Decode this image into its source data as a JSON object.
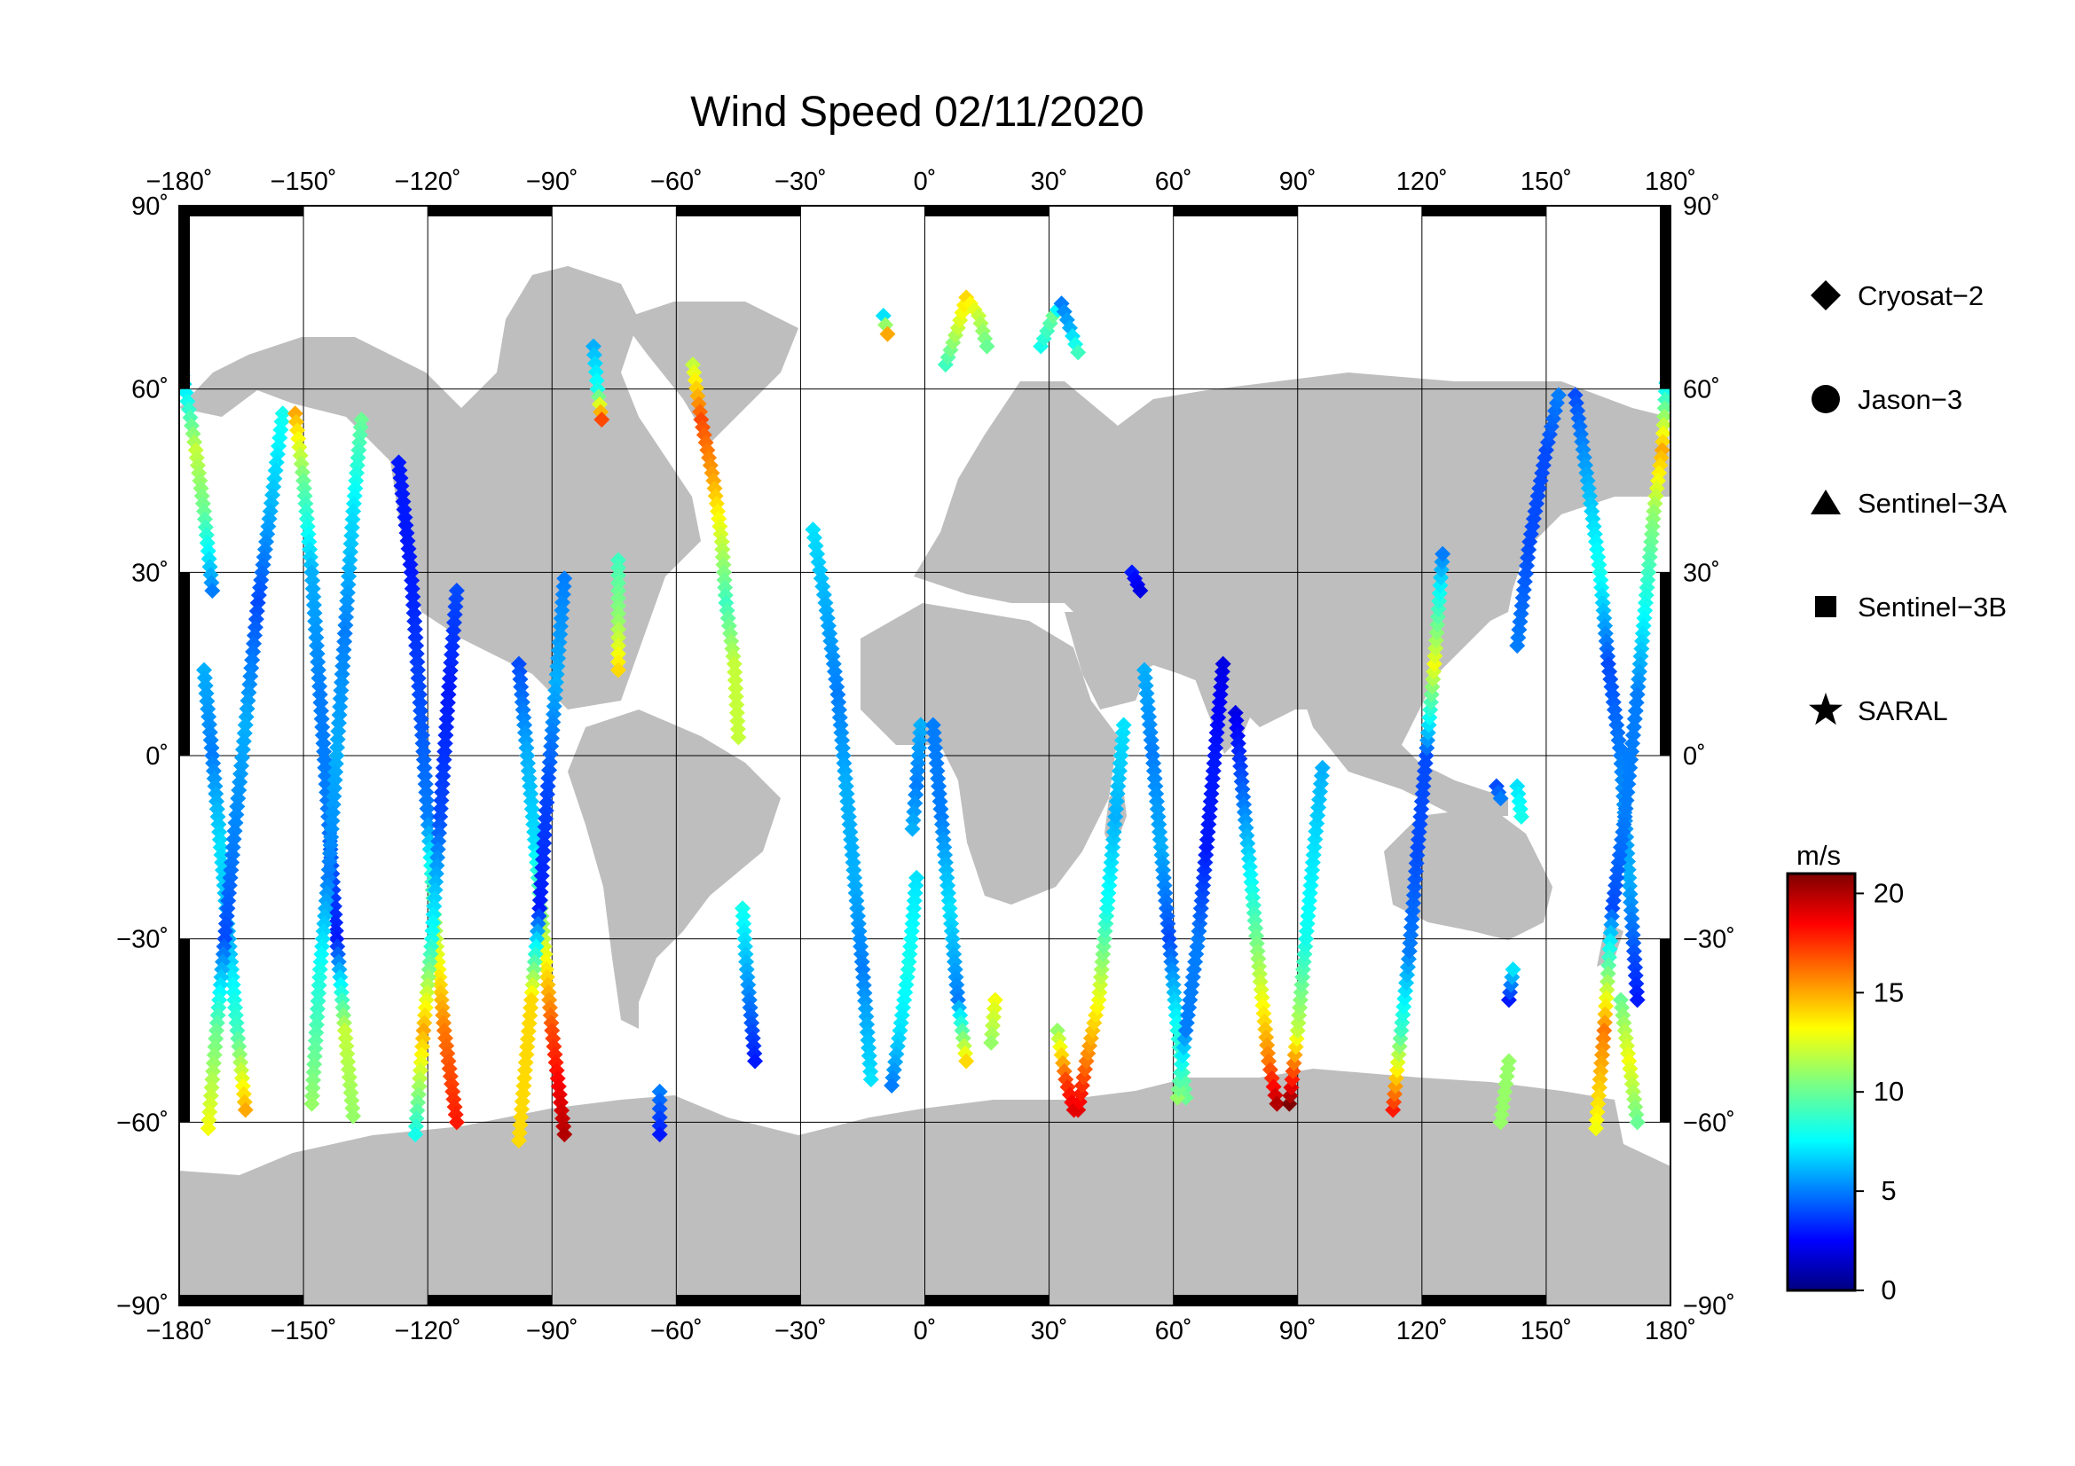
{
  "title": "Wind Speed 02/11/2020",
  "map": {
    "lon_ticks": [
      {
        "value": -180,
        "label": "−180˚"
      },
      {
        "value": -150,
        "label": "−150˚"
      },
      {
        "value": -120,
        "label": "−120˚"
      },
      {
        "value": -90,
        "label": "−90˚"
      },
      {
        "value": -60,
        "label": "−60˚"
      },
      {
        "value": -30,
        "label": "−30˚"
      },
      {
        "value": 0,
        "label": "0˚"
      },
      {
        "value": 30,
        "label": "30˚"
      },
      {
        "value": 60,
        "label": "60˚"
      },
      {
        "value": 90,
        "label": "90˚"
      },
      {
        "value": 120,
        "label": "120˚"
      },
      {
        "value": 150,
        "label": "150˚"
      },
      {
        "value": 180,
        "label": "180˚"
      }
    ],
    "lat_ticks": [
      {
        "value": 90,
        "label": "90˚"
      },
      {
        "value": 60,
        "label": "60˚"
      },
      {
        "value": 30,
        "label": "30˚"
      },
      {
        "value": 0,
        "label": "0˚"
      },
      {
        "value": -30,
        "label": "−30˚"
      },
      {
        "value": -60,
        "label": "−60˚"
      },
      {
        "value": -90,
        "label": "−90˚"
      }
    ],
    "land_color": "#bebebe",
    "ocean_color": "#ffffff"
  },
  "legend": [
    {
      "label": "Cryosat−2",
      "marker": "diamond"
    },
    {
      "label": "Jason−3",
      "marker": "circle"
    },
    {
      "label": "Sentinel−3A",
      "marker": "triangle"
    },
    {
      "label": "Sentinel−3B",
      "marker": "square"
    },
    {
      "label": "SARAL",
      "marker": "star"
    }
  ],
  "colorbar": {
    "unit": "m/s",
    "min": 0,
    "max": 21,
    "ticks": [
      {
        "value": 0,
        "label": "0"
      },
      {
        "value": 5,
        "label": "5"
      },
      {
        "value": 10,
        "label": "10"
      },
      {
        "value": 15,
        "label": "15"
      },
      {
        "value": 20,
        "label": "20"
      }
    ]
  },
  "tracks": [
    {
      "name": "track-01",
      "points": [
        [
          -180,
          65,
          5
        ],
        [
          -178,
          58,
          8
        ],
        [
          -176,
          50,
          12
        ],
        [
          -174,
          40,
          10
        ],
        [
          -172,
          27,
          5
        ]
      ]
    },
    {
      "name": "track-02",
      "points": [
        [
          -174,
          14,
          6
        ],
        [
          -172,
          0,
          5
        ],
        [
          -170,
          -15,
          7
        ],
        [
          -168,
          -30,
          6
        ],
        [
          -166,
          -45,
          9
        ],
        [
          -164,
          -58,
          15
        ]
      ]
    },
    {
      "name": "track-03",
      "points": [
        [
          -155,
          56,
          8
        ],
        [
          -158,
          40,
          6
        ],
        [
          -161,
          25,
          4
        ],
        [
          -164,
          5,
          6
        ],
        [
          -167,
          -15,
          5
        ],
        [
          -169,
          -30,
          4
        ],
        [
          -171,
          -45,
          10
        ],
        [
          -173,
          -61,
          13
        ]
      ]
    },
    {
      "name": "track-04",
      "points": [
        [
          -152,
          56,
          15
        ],
        [
          -150,
          45,
          10
        ],
        [
          -148,
          30,
          6
        ],
        [
          -146,
          10,
          5
        ],
        [
          -144,
          -10,
          5
        ],
        [
          -142,
          -30,
          3
        ],
        [
          -140,
          -45,
          12
        ],
        [
          -138,
          -59,
          11
        ]
      ]
    },
    {
      "name": "track-05",
      "points": [
        [
          -136,
          55,
          10
        ],
        [
          -138,
          40,
          7
        ],
        [
          -140,
          20,
          5
        ],
        [
          -142,
          0,
          6
        ],
        [
          -144,
          -20,
          5
        ],
        [
          -146,
          -35,
          8
        ],
        [
          -148,
          -57,
          11
        ]
      ]
    },
    {
      "name": "track-06",
      "points": [
        [
          -127,
          48,
          3
        ],
        [
          -124,
          30,
          3
        ],
        [
          -122,
          10,
          4
        ],
        [
          -120,
          -10,
          5
        ],
        [
          -118,
          -30,
          12
        ],
        [
          -116,
          -45,
          16
        ],
        [
          -113,
          -60,
          18
        ]
      ]
    },
    {
      "name": "track-07",
      "points": [
        [
          -113,
          27,
          4
        ],
        [
          -115,
          10,
          3
        ],
        [
          -117,
          -10,
          4
        ],
        [
          -119,
          -30,
          8
        ],
        [
          -121,
          -45,
          15
        ],
        [
          -123,
          -62,
          8
        ]
      ]
    },
    {
      "name": "track-08",
      "points": [
        [
          -98,
          15,
          4
        ],
        [
          -96,
          0,
          6
        ],
        [
          -94,
          -15,
          7
        ],
        [
          -92,
          -30,
          12
        ],
        [
          -90,
          -45,
          17
        ],
        [
          -87,
          -62,
          20
        ]
      ]
    },
    {
      "name": "track-09",
      "points": [
        [
          -87,
          29,
          5
        ],
        [
          -89,
          12,
          6
        ],
        [
          -91,
          -5,
          4
        ],
        [
          -93,
          -25,
          3
        ],
        [
          -95,
          -40,
          14
        ],
        [
          -98,
          -63,
          14
        ]
      ]
    },
    {
      "name": "track-10",
      "points": [
        [
          -80,
          67,
          6
        ],
        [
          -79,
          60,
          8
        ],
        [
          -78,
          55,
          17
        ]
      ]
    },
    {
      "name": "track-11",
      "points": [
        [
          -74,
          32,
          9
        ],
        [
          -74,
          22,
          11
        ],
        [
          -74,
          14,
          14
        ]
      ]
    },
    {
      "name": "track-12",
      "points": [
        [
          -56,
          64,
          12
        ],
        [
          -54,
          55,
          17
        ],
        [
          -51,
          45,
          15
        ],
        [
          -49,
          35,
          12
        ],
        [
          -48,
          25,
          9
        ],
        [
          -46,
          15,
          12
        ],
        [
          -45,
          3,
          12
        ]
      ]
    },
    {
      "name": "track-13",
      "points": [
        [
          -44,
          -25,
          8
        ],
        [
          -43,
          -35,
          6
        ],
        [
          -41,
          -50,
          3
        ]
      ]
    },
    {
      "name": "track-14",
      "points": [
        [
          -64,
          -55,
          5
        ],
        [
          -64,
          -62,
          3
        ]
      ]
    },
    {
      "name": "track-15",
      "points": [
        [
          -27,
          37,
          7
        ],
        [
          -24,
          25,
          6
        ],
        [
          -21,
          10,
          5
        ],
        [
          -19,
          -5,
          6
        ],
        [
          -17,
          -20,
          6
        ],
        [
          -15,
          -35,
          5
        ],
        [
          -13,
          -53,
          7
        ]
      ]
    },
    {
      "name": "track-16",
      "points": [
        [
          -10,
          72,
          7
        ],
        [
          -9,
          69,
          15
        ]
      ]
    },
    {
      "name": "track-17",
      "points": [
        [
          -2,
          -20,
          7
        ],
        [
          -4,
          -35,
          8
        ],
        [
          -6,
          -45,
          7
        ],
        [
          -8,
          -54,
          5
        ]
      ]
    },
    {
      "name": "track-18",
      "points": [
        [
          -1,
          5,
          6
        ],
        [
          -2,
          -5,
          5
        ],
        [
          -3,
          -12,
          6
        ]
      ]
    },
    {
      "name": "track-19",
      "points": [
        [
          2,
          5,
          5
        ],
        [
          4,
          -10,
          5
        ],
        [
          6,
          -25,
          7
        ],
        [
          8,
          -40,
          5
        ],
        [
          10,
          -50,
          14
        ]
      ]
    },
    {
      "name": "track-20",
      "points": [
        [
          5,
          64,
          9
        ],
        [
          8,
          70,
          12
        ],
        [
          10,
          75,
          14
        ],
        [
          13,
          72,
          12
        ],
        [
          15,
          67,
          10
        ]
      ]
    },
    {
      "name": "track-21",
      "points": [
        [
          17,
          -40,
          13
        ],
        [
          16,
          -47,
          11
        ]
      ]
    },
    {
      "name": "track-22",
      "points": [
        [
          28,
          67,
          8
        ],
        [
          31,
          72,
          10
        ],
        [
          33,
          74,
          5
        ],
        [
          35,
          70,
          6
        ],
        [
          37,
          66,
          9
        ]
      ]
    },
    {
      "name": "track-23",
      "points": [
        [
          32,
          -45,
          11
        ],
        [
          34,
          -53,
          17
        ],
        [
          36,
          -58,
          19
        ]
      ]
    },
    {
      "name": "track-24",
      "points": [
        [
          37,
          -58,
          19
        ],
        [
          39,
          -50,
          16
        ],
        [
          42,
          -40,
          13
        ],
        [
          44,
          -25,
          8
        ],
        [
          46,
          -10,
          6
        ],
        [
          48,
          5,
          7
        ]
      ]
    },
    {
      "name": "track-25",
      "points": [
        [
          50,
          30,
          3
        ],
        [
          52,
          27,
          2
        ]
      ]
    },
    {
      "name": "track-26",
      "points": [
        [
          53,
          14,
          6
        ],
        [
          55,
          0,
          5
        ],
        [
          57,
          -15,
          6
        ],
        [
          59,
          -30,
          4
        ],
        [
          61,
          -45,
          8
        ],
        [
          63,
          -56,
          10
        ]
      ]
    },
    {
      "name": "track-27",
      "points": [
        [
          61,
          -56,
          11
        ],
        [
          63,
          -45,
          5
        ],
        [
          66,
          -30,
          5
        ],
        [
          68,
          -15,
          3
        ],
        [
          70,
          0,
          3
        ],
        [
          72,
          15,
          2
        ]
      ]
    },
    {
      "name": "track-28",
      "points": [
        [
          75,
          7,
          2
        ],
        [
          77,
          -8,
          5
        ],
        [
          79,
          -22,
          8
        ],
        [
          81,
          -37,
          12
        ],
        [
          83,
          -50,
          16
        ],
        [
          85,
          -57,
          20
        ]
      ]
    },
    {
      "name": "track-29",
      "points": [
        [
          88,
          -57,
          21
        ],
        [
          90,
          -45,
          12
        ],
        [
          92,
          -30,
          8
        ],
        [
          94,
          -15,
          7
        ],
        [
          96,
          -2,
          6
        ]
      ]
    },
    {
      "name": "track-30",
      "points": [
        [
          113,
          -58,
          18
        ],
        [
          115,
          -45,
          9
        ],
        [
          117,
          -32,
          5
        ],
        [
          119,
          -15,
          4
        ],
        [
          121,
          0,
          4
        ],
        [
          123,
          15,
          13
        ],
        [
          125,
          33,
          5
        ]
      ]
    },
    {
      "name": "track-31",
      "points": [
        [
          139,
          -60,
          11
        ],
        [
          141,
          -50,
          11
        ]
      ]
    },
    {
      "name": "track-32",
      "points": [
        [
          141,
          -40,
          3
        ],
        [
          142,
          -35,
          7
        ]
      ]
    },
    {
      "name": "track-33",
      "points": [
        [
          138,
          -5,
          4
        ],
        [
          139,
          -7,
          5
        ]
      ]
    },
    {
      "name": "track-34",
      "points": [
        [
          143,
          -5,
          7
        ],
        [
          144,
          -10,
          8
        ]
      ]
    },
    {
      "name": "track-35",
      "points": [
        [
          143,
          18,
          5
        ],
        [
          146,
          35,
          4
        ],
        [
          150,
          50,
          4
        ],
        [
          153,
          59,
          5
        ]
      ]
    },
    {
      "name": "track-36",
      "points": [
        [
          157,
          59,
          4
        ],
        [
          160,
          45,
          6
        ],
        [
          163,
          30,
          8
        ],
        [
          165,
          15,
          4
        ],
        [
          168,
          0,
          5
        ],
        [
          170,
          -20,
          6
        ],
        [
          172,
          -40,
          3
        ]
      ]
    },
    {
      "name": "track-37",
      "points": [
        [
          179,
          61,
          7
        ],
        [
          178,
          50,
          15
        ],
        [
          176,
          40,
          11
        ],
        [
          174,
          25,
          8
        ],
        [
          172,
          10,
          5
        ],
        [
          169,
          -10,
          5
        ],
        [
          166,
          -25,
          4
        ],
        [
          164,
          -45,
          16
        ],
        [
          162,
          -61,
          13
        ]
      ]
    },
    {
      "name": "track-38",
      "points": [
        [
          168,
          -40,
          10
        ],
        [
          170,
          -50,
          13
        ],
        [
          172,
          -60,
          10
        ]
      ]
    }
  ]
}
